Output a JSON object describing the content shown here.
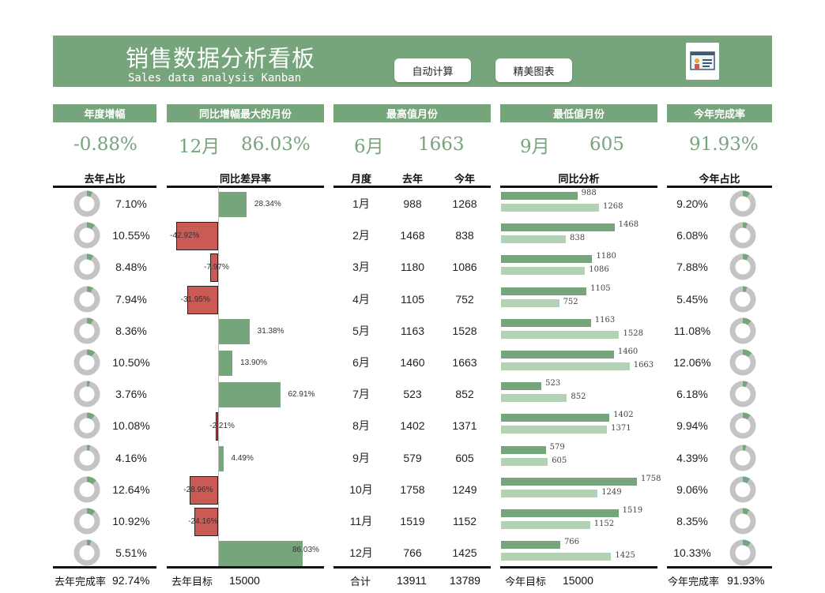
{
  "header": {
    "title_cn": "销售数据分析看板",
    "title_en": "Sales data analysis Kanban",
    "btn_auto": "自动计算",
    "btn_chart": "精美图表"
  },
  "kpis": {
    "annual_growth": {
      "label": "年度增幅",
      "value": "-0.88%"
    },
    "max_yoy_month": {
      "label": "同比增幅最大的月份",
      "month": "12月",
      "value": "86.03%"
    },
    "max_month": {
      "label": "最高值月份",
      "month": "6月",
      "value": "1663"
    },
    "min_month": {
      "label": "最低值月份",
      "month": "9月",
      "value": "605"
    },
    "completion": {
      "label": "今年完成率",
      "value": "91.93%"
    }
  },
  "columns": {
    "last_share": "去年占比",
    "yoy_diff": "同比差异率",
    "month": "月度",
    "last_year": "去年",
    "this_year": "今年",
    "yoy_analysis": "同比分析",
    "this_share": "今年占比"
  },
  "rows": [
    {
      "month": "1月",
      "last": 988,
      "this": 1268,
      "last_share": "7.10%",
      "this_share": "9.20%",
      "diff": "28.34%",
      "diff_value": 28.34
    },
    {
      "month": "2月",
      "last": 1468,
      "this": 838,
      "last_share": "10.55%",
      "this_share": "6.08%",
      "diff": "-42.92%",
      "diff_value": -42.92
    },
    {
      "month": "3月",
      "last": 1180,
      "this": 1086,
      "last_share": "8.48%",
      "this_share": "7.88%",
      "diff": "-7.97%",
      "diff_value": -7.97
    },
    {
      "month": "4月",
      "last": 1105,
      "this": 752,
      "last_share": "7.94%",
      "this_share": "5.45%",
      "diff": "-31.95%",
      "diff_value": -31.95
    },
    {
      "month": "5月",
      "last": 1163,
      "this": 1528,
      "last_share": "8.36%",
      "this_share": "11.08%",
      "diff": "31.38%",
      "diff_value": 31.38
    },
    {
      "month": "6月",
      "last": 1460,
      "this": 1663,
      "last_share": "10.50%",
      "this_share": "12.06%",
      "diff": "13.90%",
      "diff_value": 13.9
    },
    {
      "month": "7月",
      "last": 523,
      "this": 852,
      "last_share": "3.76%",
      "this_share": "6.18%",
      "diff": "62.91%",
      "diff_value": 62.91
    },
    {
      "month": "8月",
      "last": 1402,
      "this": 1371,
      "last_share": "10.08%",
      "this_share": "9.94%",
      "diff": "-2.21%",
      "diff_value": -2.21
    },
    {
      "month": "9月",
      "last": 579,
      "this": 605,
      "last_share": "4.16%",
      "this_share": "4.39%",
      "diff": "4.49%",
      "diff_value": 4.49
    },
    {
      "month": "10月",
      "last": 1758,
      "this": 1249,
      "last_share": "12.64%",
      "this_share": "9.06%",
      "diff": "-28.96%",
      "diff_value": -28.96
    },
    {
      "month": "11月",
      "last": 1519,
      "this": 1152,
      "last_share": "10.92%",
      "this_share": "8.35%",
      "diff": "-24.16%",
      "diff_value": -24.16
    },
    {
      "month": "12月",
      "last": 766,
      "this": 1425,
      "last_share": "5.51%",
      "this_share": "10.33%",
      "diff": "86.03%",
      "diff_value": 86.03
    }
  ],
  "footer": {
    "last_completion_label": "去年完成率",
    "last_completion_value": "92.74%",
    "last_target_label": "去年目标",
    "last_target_value": "15000",
    "total_label": "合计",
    "total_last": "13911",
    "total_this": "13789",
    "this_target_label": "今年目标",
    "this_target_value": "15000",
    "this_completion_label": "今年完成率",
    "this_completion_value": "91.93%"
  },
  "colors": {
    "accent": "#76a57b",
    "light": "#b3d1b4",
    "negative": "#c95a54",
    "ring": "#c4c4c4"
  }
}
